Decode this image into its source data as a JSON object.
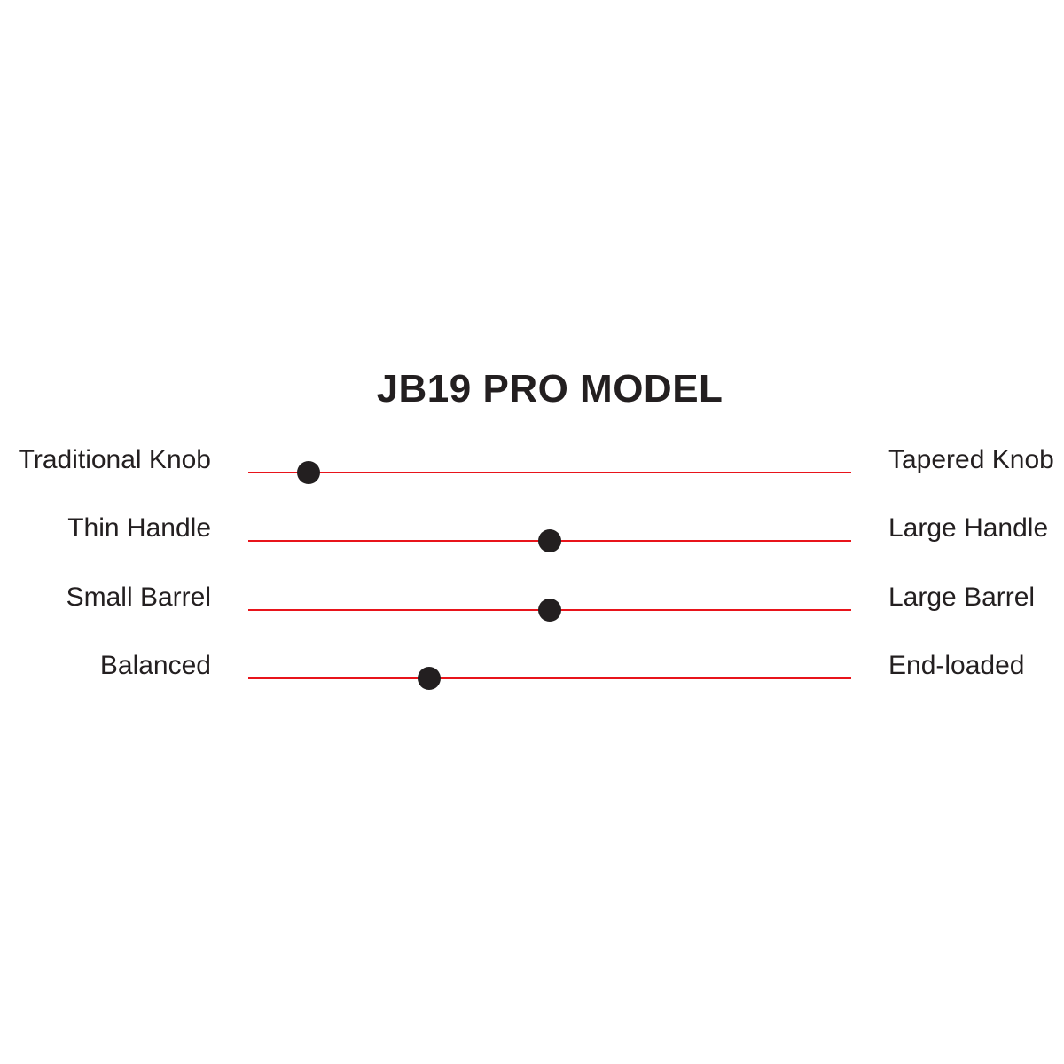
{
  "chart_data": {
    "type": "slider-scale",
    "title": "JB19 PRO MODEL",
    "scale_range": [
      0,
      1
    ],
    "rows": [
      {
        "left_label": "Traditional Knob",
        "right_label": "Tapered Knob",
        "value": 0.1
      },
      {
        "left_label": "Thin Handle",
        "right_label": "Large Handle",
        "value": 0.5
      },
      {
        "left_label": "Small Barrel",
        "right_label": "Large Barrel",
        "value": 0.5
      },
      {
        "left_label": "Balanced",
        "right_label": "End-loaded",
        "value": 0.3
      }
    ]
  },
  "colors": {
    "line": "#e8141b",
    "dot": "#231f20",
    "text": "#231f20"
  }
}
